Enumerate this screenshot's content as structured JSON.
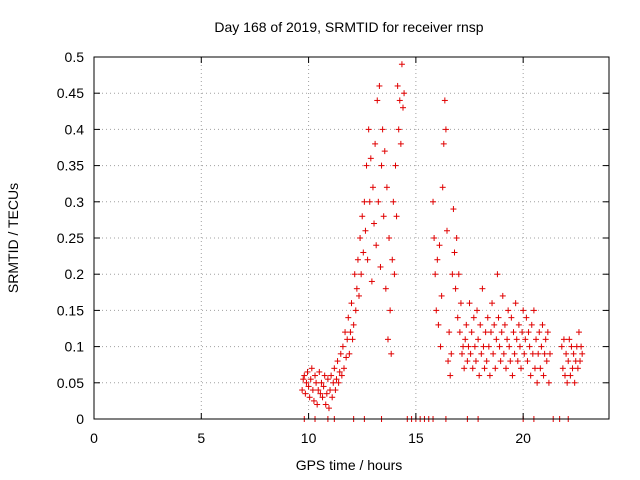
{
  "chart_data": {
    "type": "scatter",
    "title": "Day 168 of 2019, SRMTID for receiver rnsp",
    "xlabel": "GPS time / hours",
    "ylabel": "SRMTID / TECUs",
    "xlim": [
      0,
      24
    ],
    "ylim": [
      0,
      0.5
    ],
    "grid": true,
    "x_ticks": [
      {
        "value": 0,
        "label": "0"
      },
      {
        "value": 5,
        "label": "5"
      },
      {
        "value": 10,
        "label": "10"
      },
      {
        "value": 15,
        "label": "15"
      },
      {
        "value": 20,
        "label": "20"
      }
    ],
    "y_ticks": [
      {
        "value": 0,
        "label": "0"
      },
      {
        "value": 0.05,
        "label": "0.05"
      },
      {
        "value": 0.1,
        "label": "0.1"
      },
      {
        "value": 0.15,
        "label": "0.15"
      },
      {
        "value": 0.2,
        "label": "0.2"
      },
      {
        "value": 0.25,
        "label": "0.25"
      },
      {
        "value": 0.3,
        "label": "0.3"
      },
      {
        "value": 0.35,
        "label": "0.35"
      },
      {
        "value": 0.4,
        "label": "0.4"
      },
      {
        "value": 0.45,
        "label": "0.45"
      },
      {
        "value": 0.5,
        "label": "0.5"
      }
    ],
    "marker": "+",
    "series": [
      {
        "name": "SRMTID",
        "color": "#e00000",
        "points": [
          [
            9.7,
            0.04
          ],
          [
            9.75,
            0.055
          ],
          [
            9.8,
            0.06
          ],
          [
            9.85,
            0.035
          ],
          [
            9.9,
            0.05
          ],
          [
            9.95,
            0.065
          ],
          [
            10.0,
            0.045
          ],
          [
            10.05,
            0.03
          ],
          [
            10.1,
            0.055
          ],
          [
            10.15,
            0.07
          ],
          [
            10.2,
            0.04
          ],
          [
            10.25,
            0.025
          ],
          [
            10.3,
            0.06
          ],
          [
            10.35,
            0.05
          ],
          [
            10.4,
            0.02
          ],
          [
            10.45,
            0.04
          ],
          [
            10.5,
            0.065
          ],
          [
            10.55,
            0.035
          ],
          [
            10.6,
            0.05
          ],
          [
            10.65,
            0.03
          ],
          [
            10.7,
            0.045
          ],
          [
            10.75,
            0.06
          ],
          [
            10.8,
            0.02
          ],
          [
            10.85,
            0.035
          ],
          [
            10.9,
            0.055
          ],
          [
            10.95,
            0.015
          ],
          [
            11.0,
            0.04
          ],
          [
            11.05,
            0.06
          ],
          [
            11.1,
            0.03
          ],
          [
            11.15,
            0.05
          ],
          [
            11.2,
            0.07
          ],
          [
            11.25,
            0.04
          ],
          [
            11.3,
            0.055
          ],
          [
            11.35,
            0.08
          ],
          [
            11.4,
            0.05
          ],
          [
            11.45,
            0.065
          ],
          [
            11.5,
            0.09
          ],
          [
            11.55,
            0.06
          ],
          [
            11.6,
            0.1
          ],
          [
            11.65,
            0.07
          ],
          [
            11.7,
            0.12
          ],
          [
            11.75,
            0.085
          ],
          [
            11.8,
            0.11
          ],
          [
            11.85,
            0.14
          ],
          [
            11.9,
            0.09
          ],
          [
            11.95,
            0.12
          ],
          [
            12.0,
            0.16
          ],
          [
            12.05,
            0.11
          ],
          [
            12.1,
            0.13
          ],
          [
            12.15,
            0.2
          ],
          [
            12.2,
            0.15
          ],
          [
            12.25,
            0.18
          ],
          [
            12.3,
            0.22
          ],
          [
            12.35,
            0.17
          ],
          [
            12.4,
            0.25
          ],
          [
            12.45,
            0.2
          ],
          [
            12.5,
            0.28
          ],
          [
            12.55,
            0.23
          ],
          [
            12.6,
            0.3
          ],
          [
            12.65,
            0.26
          ],
          [
            12.7,
            0.35
          ],
          [
            12.75,
            0.22
          ],
          [
            12.8,
            0.4
          ],
          [
            12.85,
            0.3
          ],
          [
            12.9,
            0.36
          ],
          [
            12.95,
            0.19
          ],
          [
            13.0,
            0.32
          ],
          [
            13.05,
            0.27
          ],
          [
            13.1,
            0.38
          ],
          [
            13.15,
            0.24
          ],
          [
            13.2,
            0.44
          ],
          [
            13.25,
            0.3
          ],
          [
            13.3,
            0.46
          ],
          [
            13.35,
            0.21
          ],
          [
            13.4,
            0.35
          ],
          [
            13.45,
            0.4
          ],
          [
            13.5,
            0.28
          ],
          [
            13.55,
            0.37
          ],
          [
            13.6,
            0.18
          ],
          [
            13.65,
            0.32
          ],
          [
            13.7,
            0.11
          ],
          [
            13.75,
            0.25
          ],
          [
            13.8,
            0.15
          ],
          [
            13.85,
            0.09
          ],
          [
            13.9,
            0.22
          ],
          [
            13.95,
            0.3
          ],
          [
            14.0,
            0.2
          ],
          [
            14.05,
            0.35
          ],
          [
            14.1,
            0.28
          ],
          [
            14.15,
            0.46
          ],
          [
            14.2,
            0.4
          ],
          [
            14.25,
            0.44
          ],
          [
            14.3,
            0.38
          ],
          [
            14.35,
            0.49
          ],
          [
            14.4,
            0.43
          ],
          [
            14.45,
            0.45
          ],
          [
            15.8,
            0.3
          ],
          [
            15.85,
            0.25
          ],
          [
            15.9,
            0.2
          ],
          [
            15.95,
            0.15
          ],
          [
            16.0,
            0.22
          ],
          [
            16.05,
            0.13
          ],
          [
            16.1,
            0.24
          ],
          [
            16.15,
            0.1
          ],
          [
            16.2,
            0.17
          ],
          [
            16.25,
            0.32
          ],
          [
            16.3,
            0.38
          ],
          [
            16.35,
            0.44
          ],
          [
            16.4,
            0.4
          ],
          [
            16.45,
            0.26
          ],
          [
            16.5,
            0.08
          ],
          [
            16.55,
            0.12
          ],
          [
            16.6,
            0.06
          ],
          [
            16.65,
            0.09
          ],
          [
            16.7,
            0.2
          ],
          [
            16.75,
            0.29
          ],
          [
            16.8,
            0.23
          ],
          [
            16.85,
            0.18
          ],
          [
            16.9,
            0.25
          ],
          [
            16.95,
            0.14
          ],
          [
            17.0,
            0.2
          ],
          [
            17.05,
            0.12
          ],
          [
            17.1,
            0.16
          ],
          [
            17.15,
            0.09
          ],
          [
            17.2,
            0.1
          ],
          [
            17.25,
            0.07
          ],
          [
            17.3,
            0.11
          ],
          [
            17.35,
            0.13
          ],
          [
            17.4,
            0.08
          ],
          [
            17.45,
            0.1
          ],
          [
            17.5,
            0.16
          ],
          [
            17.55,
            0.09
          ],
          [
            17.6,
            0.12
          ],
          [
            17.65,
            0.07
          ],
          [
            17.7,
            0.14
          ],
          [
            17.75,
            0.1
          ],
          [
            17.8,
            0.08
          ],
          [
            17.85,
            0.15
          ],
          [
            17.9,
            0.11
          ],
          [
            17.95,
            0.06
          ],
          [
            18.0,
            0.13
          ],
          [
            18.05,
            0.09
          ],
          [
            18.1,
            0.18
          ],
          [
            18.15,
            0.1
          ],
          [
            18.2,
            0.07
          ],
          [
            18.25,
            0.12
          ],
          [
            18.3,
            0.08
          ],
          [
            18.35,
            0.14
          ],
          [
            18.4,
            0.1
          ],
          [
            18.45,
            0.06
          ],
          [
            18.5,
            0.12
          ],
          [
            18.55,
            0.16
          ],
          [
            18.6,
            0.09
          ],
          [
            18.65,
            0.13
          ],
          [
            18.7,
            0.07
          ],
          [
            18.75,
            0.11
          ],
          [
            18.8,
            0.2
          ],
          [
            18.85,
            0.14
          ],
          [
            18.9,
            0.1
          ],
          [
            18.95,
            0.08
          ],
          [
            19.0,
            0.12
          ],
          [
            19.05,
            0.17
          ],
          [
            19.1,
            0.09
          ],
          [
            19.15,
            0.13
          ],
          [
            19.2,
            0.07
          ],
          [
            19.25,
            0.11
          ],
          [
            19.3,
            0.15
          ],
          [
            19.35,
            0.1
          ],
          [
            19.4,
            0.08
          ],
          [
            19.45,
            0.14
          ],
          [
            19.5,
            0.06
          ],
          [
            19.55,
            0.12
          ],
          [
            19.6,
            0.09
          ],
          [
            19.65,
            0.16
          ],
          [
            19.7,
            0.11
          ],
          [
            19.75,
            0.08
          ],
          [
            19.8,
            0.13
          ],
          [
            19.85,
            0.1
          ],
          [
            19.9,
            0.07
          ],
          [
            19.95,
            0.12
          ],
          [
            20.0,
            0.15
          ],
          [
            20.05,
            0.09
          ],
          [
            20.1,
            0.11
          ],
          [
            20.15,
            0.14
          ],
          [
            20.2,
            0.08
          ],
          [
            20.25,
            0.12
          ],
          [
            20.3,
            0.1
          ],
          [
            20.35,
            0.06
          ],
          [
            20.4,
            0.13
          ],
          [
            20.45,
            0.09
          ],
          [
            20.5,
            0.15
          ],
          [
            20.55,
            0.07
          ],
          [
            20.6,
            0.11
          ],
          [
            20.65,
            0.05
          ],
          [
            20.7,
            0.09
          ],
          [
            20.75,
            0.12
          ],
          [
            20.8,
            0.07
          ],
          [
            20.85,
            0.1
          ],
          [
            20.9,
            0.13
          ],
          [
            20.95,
            0.06
          ],
          [
            21.0,
            0.09
          ],
          [
            21.05,
            0.11
          ],
          [
            21.1,
            0.08
          ],
          [
            21.15,
            0.12
          ],
          [
            21.2,
            0.05
          ],
          [
            21.25,
            0.09
          ],
          [
            21.8,
            0.1
          ],
          [
            21.85,
            0.07
          ],
          [
            21.9,
            0.11
          ],
          [
            21.95,
            0.06
          ],
          [
            22.0,
            0.09
          ],
          [
            22.05,
            0.05
          ],
          [
            22.1,
            0.08
          ],
          [
            22.15,
            0.11
          ],
          [
            22.2,
            0.06
          ],
          [
            22.25,
            0.1
          ],
          [
            22.3,
            0.07
          ],
          [
            22.35,
            0.09
          ],
          [
            22.4,
            0.05
          ],
          [
            22.45,
            0.08
          ],
          [
            22.5,
            0.1
          ],
          [
            22.55,
            0.07
          ],
          [
            22.6,
            0.12
          ],
          [
            22.65,
            0.08
          ],
          [
            22.7,
            0.1
          ],
          [
            22.75,
            0.09
          ],
          [
            9.8,
            0.0
          ],
          [
            10.3,
            0.0
          ],
          [
            10.9,
            0.0
          ],
          [
            11.2,
            0.0
          ],
          [
            12.1,
            0.0
          ],
          [
            12.6,
            0.0
          ],
          [
            13.4,
            0.0
          ],
          [
            14.6,
            0.0
          ],
          [
            14.8,
            0.0
          ],
          [
            15.0,
            0.0
          ],
          [
            15.2,
            0.0
          ],
          [
            15.4,
            0.0
          ],
          [
            15.6,
            0.0
          ],
          [
            15.8,
            0.0
          ],
          [
            16.4,
            0.0
          ],
          [
            17.4,
            0.0
          ],
          [
            17.9,
            0.0
          ],
          [
            20.0,
            0.0
          ],
          [
            20.5,
            0.0
          ],
          [
            21.4,
            0.0
          ],
          [
            21.7,
            0.0
          ],
          [
            22.1,
            0.0
          ]
        ]
      }
    ]
  }
}
